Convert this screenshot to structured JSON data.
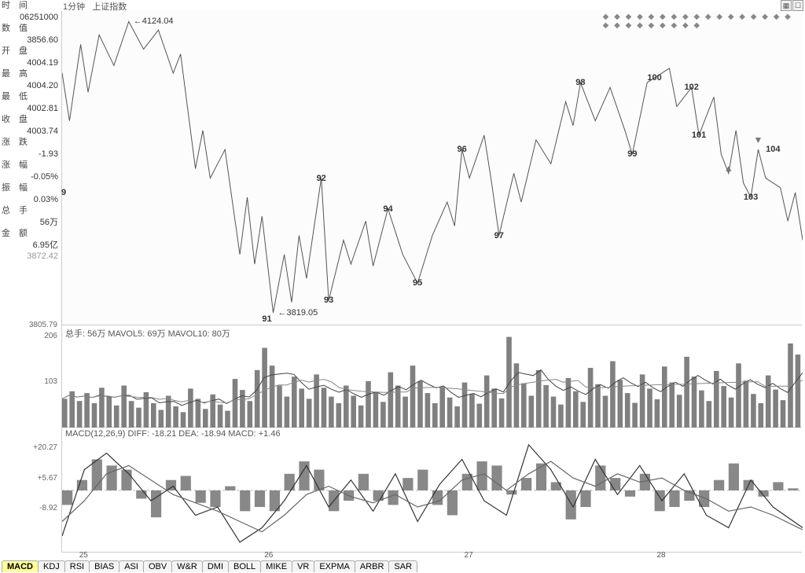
{
  "topbar": {
    "time_lbl": "时　间",
    "interval": "1分钟",
    "index_name": "上证指数",
    "date_code": "06251000"
  },
  "left_panel": {
    "rows": [
      {
        "label": "数　值",
        "value": "3856.60"
      },
      {
        "label": "开　盘",
        "value": "4004.19"
      },
      {
        "label": "最　高",
        "value": "4004.20"
      },
      {
        "label": "最　低",
        "value": "4002.81"
      },
      {
        "label": "收　盘",
        "value": "4003.74"
      },
      {
        "label": "涨　跌",
        "value": "-1.93"
      },
      {
        "label": "涨　幅",
        "value": "-0.05%"
      },
      {
        "label": "振　幅",
        "value": "0.03%"
      },
      {
        "label": "总　手",
        "value": "56万"
      },
      {
        "label": "金　额",
        "value": "6.95亿"
      }
    ],
    "extra_left_9": "9",
    "time_bottom": "3872.42"
  },
  "price_panel": {
    "ylim": [
      3805.79,
      4135
    ],
    "yticks": [
      3805.79
    ],
    "peak_hi": {
      "x_pct": 9,
      "y": 4124.04,
      "label": "4124.04"
    },
    "peak_lo": {
      "x_pct": 28.5,
      "y": 3819.05,
      "label": "3819.05",
      "code": "91"
    },
    "wave_labels": [
      {
        "n": "92",
        "x_pct": 35,
        "y": 3960
      },
      {
        "n": "93",
        "x_pct": 36,
        "y": 3832
      },
      {
        "n": "94",
        "x_pct": 44,
        "y": 3928
      },
      {
        "n": "95",
        "x_pct": 48,
        "y": 3850
      },
      {
        "n": "96",
        "x_pct": 54,
        "y": 3990
      },
      {
        "n": "97",
        "x_pct": 59,
        "y": 3900
      },
      {
        "n": "98",
        "x_pct": 70,
        "y": 4060
      },
      {
        "n": "99",
        "x_pct": 77,
        "y": 3985
      },
      {
        "n": "100",
        "x_pct": 80,
        "y": 4065
      },
      {
        "n": "101",
        "x_pct": 86,
        "y": 4005
      },
      {
        "n": "102",
        "x_pct": 85,
        "y": 4055
      },
      {
        "n": "103",
        "x_pct": 93,
        "y": 3940
      },
      {
        "n": "104",
        "x_pct": 96,
        "y": 3990
      }
    ],
    "arrows": [
      {
        "x_pct": 90,
        "y": 3970,
        "dir": "up"
      },
      {
        "x_pct": 94,
        "y": 4000,
        "dir": "down"
      }
    ],
    "line_color": "#555555",
    "line": [
      [
        0,
        4070
      ],
      [
        1,
        4020
      ],
      [
        2.5,
        4100
      ],
      [
        3.5,
        4050
      ],
      [
        5,
        4110
      ],
      [
        7,
        4078
      ],
      [
        9,
        4124
      ],
      [
        11,
        4095
      ],
      [
        13,
        4115
      ],
      [
        15,
        4070
      ],
      [
        16,
        4090
      ],
      [
        18,
        3970
      ],
      [
        19,
        4010
      ],
      [
        20,
        3960
      ],
      [
        22,
        3990
      ],
      [
        24,
        3880
      ],
      [
        25,
        3940
      ],
      [
        26,
        3870
      ],
      [
        27,
        3920
      ],
      [
        28.5,
        3819
      ],
      [
        30,
        3880
      ],
      [
        31,
        3830
      ],
      [
        32,
        3900
      ],
      [
        33,
        3855
      ],
      [
        35,
        3960
      ],
      [
        36,
        3832
      ],
      [
        38,
        3895
      ],
      [
        39,
        3870
      ],
      [
        41,
        3915
      ],
      [
        42,
        3868
      ],
      [
        44,
        3928
      ],
      [
        46,
        3880
      ],
      [
        48,
        3850
      ],
      [
        50,
        3900
      ],
      [
        52,
        3935
      ],
      [
        53,
        3910
      ],
      [
        54,
        3990
      ],
      [
        55,
        3960
      ],
      [
        57,
        4005
      ],
      [
        58,
        3955
      ],
      [
        59,
        3900
      ],
      [
        61,
        3965
      ],
      [
        62,
        3935
      ],
      [
        64,
        4000
      ],
      [
        66,
        3975
      ],
      [
        68,
        4040
      ],
      [
        69,
        4015
      ],
      [
        70,
        4060
      ],
      [
        72,
        4020
      ],
      [
        74,
        4055
      ],
      [
        76,
        4010
      ],
      [
        77,
        3985
      ],
      [
        79,
        4060
      ],
      [
        80,
        4065
      ],
      [
        82,
        4075
      ],
      [
        83,
        4035
      ],
      [
        85,
        4055
      ],
      [
        86,
        4005
      ],
      [
        88,
        4045
      ],
      [
        89,
        3985
      ],
      [
        90,
        3965
      ],
      [
        91,
        4010
      ],
      [
        92,
        3955
      ],
      [
        93,
        3940
      ],
      [
        94,
        3990
      ],
      [
        95,
        3960
      ],
      [
        97,
        3950
      ],
      [
        98,
        3915
      ],
      [
        99,
        3945
      ],
      [
        100,
        3895
      ]
    ]
  },
  "volume_panel": {
    "header": "总手: 56万 MAVOL5: 69万 MAVOL10: 80万",
    "ylim": [
      0,
      206
    ],
    "yticks": [
      0,
      103,
      206
    ],
    "bar_color": "#808080",
    "line1_color": "#444444",
    "line2_color": "#888888",
    "bars": [
      65,
      82,
      60,
      78,
      55,
      90,
      70,
      50,
      95,
      60,
      45,
      80,
      55,
      40,
      72,
      48,
      35,
      88,
      65,
      42,
      75,
      52,
      38,
      110,
      85,
      60,
      130,
      180,
      140,
      95,
      70,
      115,
      88,
      65,
      120,
      90,
      70,
      55,
      95,
      72,
      50,
      105,
      80,
      58,
      125,
      95,
      70,
      140,
      105,
      78,
      55,
      92,
      68,
      48,
      102,
      76,
      54,
      118,
      88,
      66,
      205,
      145,
      100,
      72,
      130,
      96,
      70,
      52,
      112,
      82,
      58,
      135,
      98,
      72,
      150,
      108,
      78,
      56,
      120,
      88,
      64,
      138,
      102,
      74,
      160,
      115,
      84,
      60,
      128,
      94,
      68,
      145,
      106,
      76,
      55,
      118,
      86,
      62,
      190,
      165
    ]
  },
  "macd_panel": {
    "header": "MACD(12,26,9) DIFF: -18.21 DEA: -18.94 MACD: +1.46",
    "ylim": [
      -30,
      25
    ],
    "yticks": [
      -8.92,
      5.67,
      20.27
    ],
    "zero_style": "dashed",
    "hist_color": "#888888",
    "diff_color": "#333333",
    "dea_color": "#666666",
    "diff": [
      [
        0,
        -22
      ],
      [
        3,
        10
      ],
      [
        6,
        18
      ],
      [
        9,
        8
      ],
      [
        12,
        -5
      ],
      [
        15,
        2
      ],
      [
        18,
        -12
      ],
      [
        21,
        -8
      ],
      [
        24,
        -25
      ],
      [
        27,
        -18
      ],
      [
        30,
        -5
      ],
      [
        33,
        12
      ],
      [
        36,
        -8
      ],
      [
        39,
        5
      ],
      [
        42,
        -10
      ],
      [
        45,
        8
      ],
      [
        48,
        -15
      ],
      [
        51,
        3
      ],
      [
        54,
        15
      ],
      [
        57,
        -5
      ],
      [
        60,
        -12
      ],
      [
        63,
        22
      ],
      [
        66,
        10
      ],
      [
        69,
        -8
      ],
      [
        72,
        15
      ],
      [
        75,
        -2
      ],
      [
        78,
        12
      ],
      [
        81,
        -5
      ],
      [
        84,
        8
      ],
      [
        87,
        -12
      ],
      [
        90,
        -18
      ],
      [
        93,
        5
      ],
      [
        96,
        -8
      ],
      [
        100,
        -18
      ]
    ],
    "dea": [
      [
        0,
        -15
      ],
      [
        3,
        -5
      ],
      [
        6,
        8
      ],
      [
        9,
        12
      ],
      [
        12,
        5
      ],
      [
        15,
        -2
      ],
      [
        18,
        -6
      ],
      [
        21,
        -10
      ],
      [
        24,
        -15
      ],
      [
        27,
        -20
      ],
      [
        30,
        -12
      ],
      [
        33,
        -2
      ],
      [
        36,
        2
      ],
      [
        39,
        -3
      ],
      [
        42,
        -6
      ],
      [
        45,
        -2
      ],
      [
        48,
        -8
      ],
      [
        51,
        -5
      ],
      [
        54,
        5
      ],
      [
        57,
        8
      ],
      [
        60,
        0
      ],
      [
        63,
        8
      ],
      [
        66,
        14
      ],
      [
        69,
        6
      ],
      [
        72,
        2
      ],
      [
        75,
        8
      ],
      [
        78,
        4
      ],
      [
        81,
        6
      ],
      [
        84,
        0
      ],
      [
        87,
        -4
      ],
      [
        90,
        -10
      ],
      [
        93,
        -8
      ],
      [
        96,
        -12
      ],
      [
        100,
        -19
      ]
    ],
    "hist": [
      -7,
      5,
      15,
      12,
      10,
      -4,
      -13,
      5,
      7,
      -6,
      -8,
      2,
      -10,
      -8,
      -10,
      8,
      14,
      10,
      -10,
      -5,
      8,
      -5,
      -7,
      6,
      10,
      -7,
      -12,
      8,
      14,
      12,
      -2,
      6,
      13,
      4,
      -14,
      -8,
      12,
      6,
      -3,
      8,
      -10,
      -8,
      -5,
      -8,
      5,
      13,
      5,
      -3,
      4,
      1
    ]
  },
  "xaxis": {
    "ticks": [
      {
        "p": 3,
        "l": "25"
      },
      {
        "p": 28,
        "l": "26"
      },
      {
        "p": 55,
        "l": "27"
      },
      {
        "p": 81,
        "l": "28"
      }
    ]
  },
  "tabs": [
    "MACD",
    "KDJ",
    "RSI",
    "BIAS",
    "ASI",
    "OBV",
    "W&R",
    "DMI",
    "BOLL",
    "MIKE",
    "VR",
    "EXPMA",
    "ARBR",
    "SAR"
  ],
  "active_tab": 0,
  "colors": {
    "bg": "#ffffff",
    "border": "#cccccc",
    "text": "#555555"
  }
}
